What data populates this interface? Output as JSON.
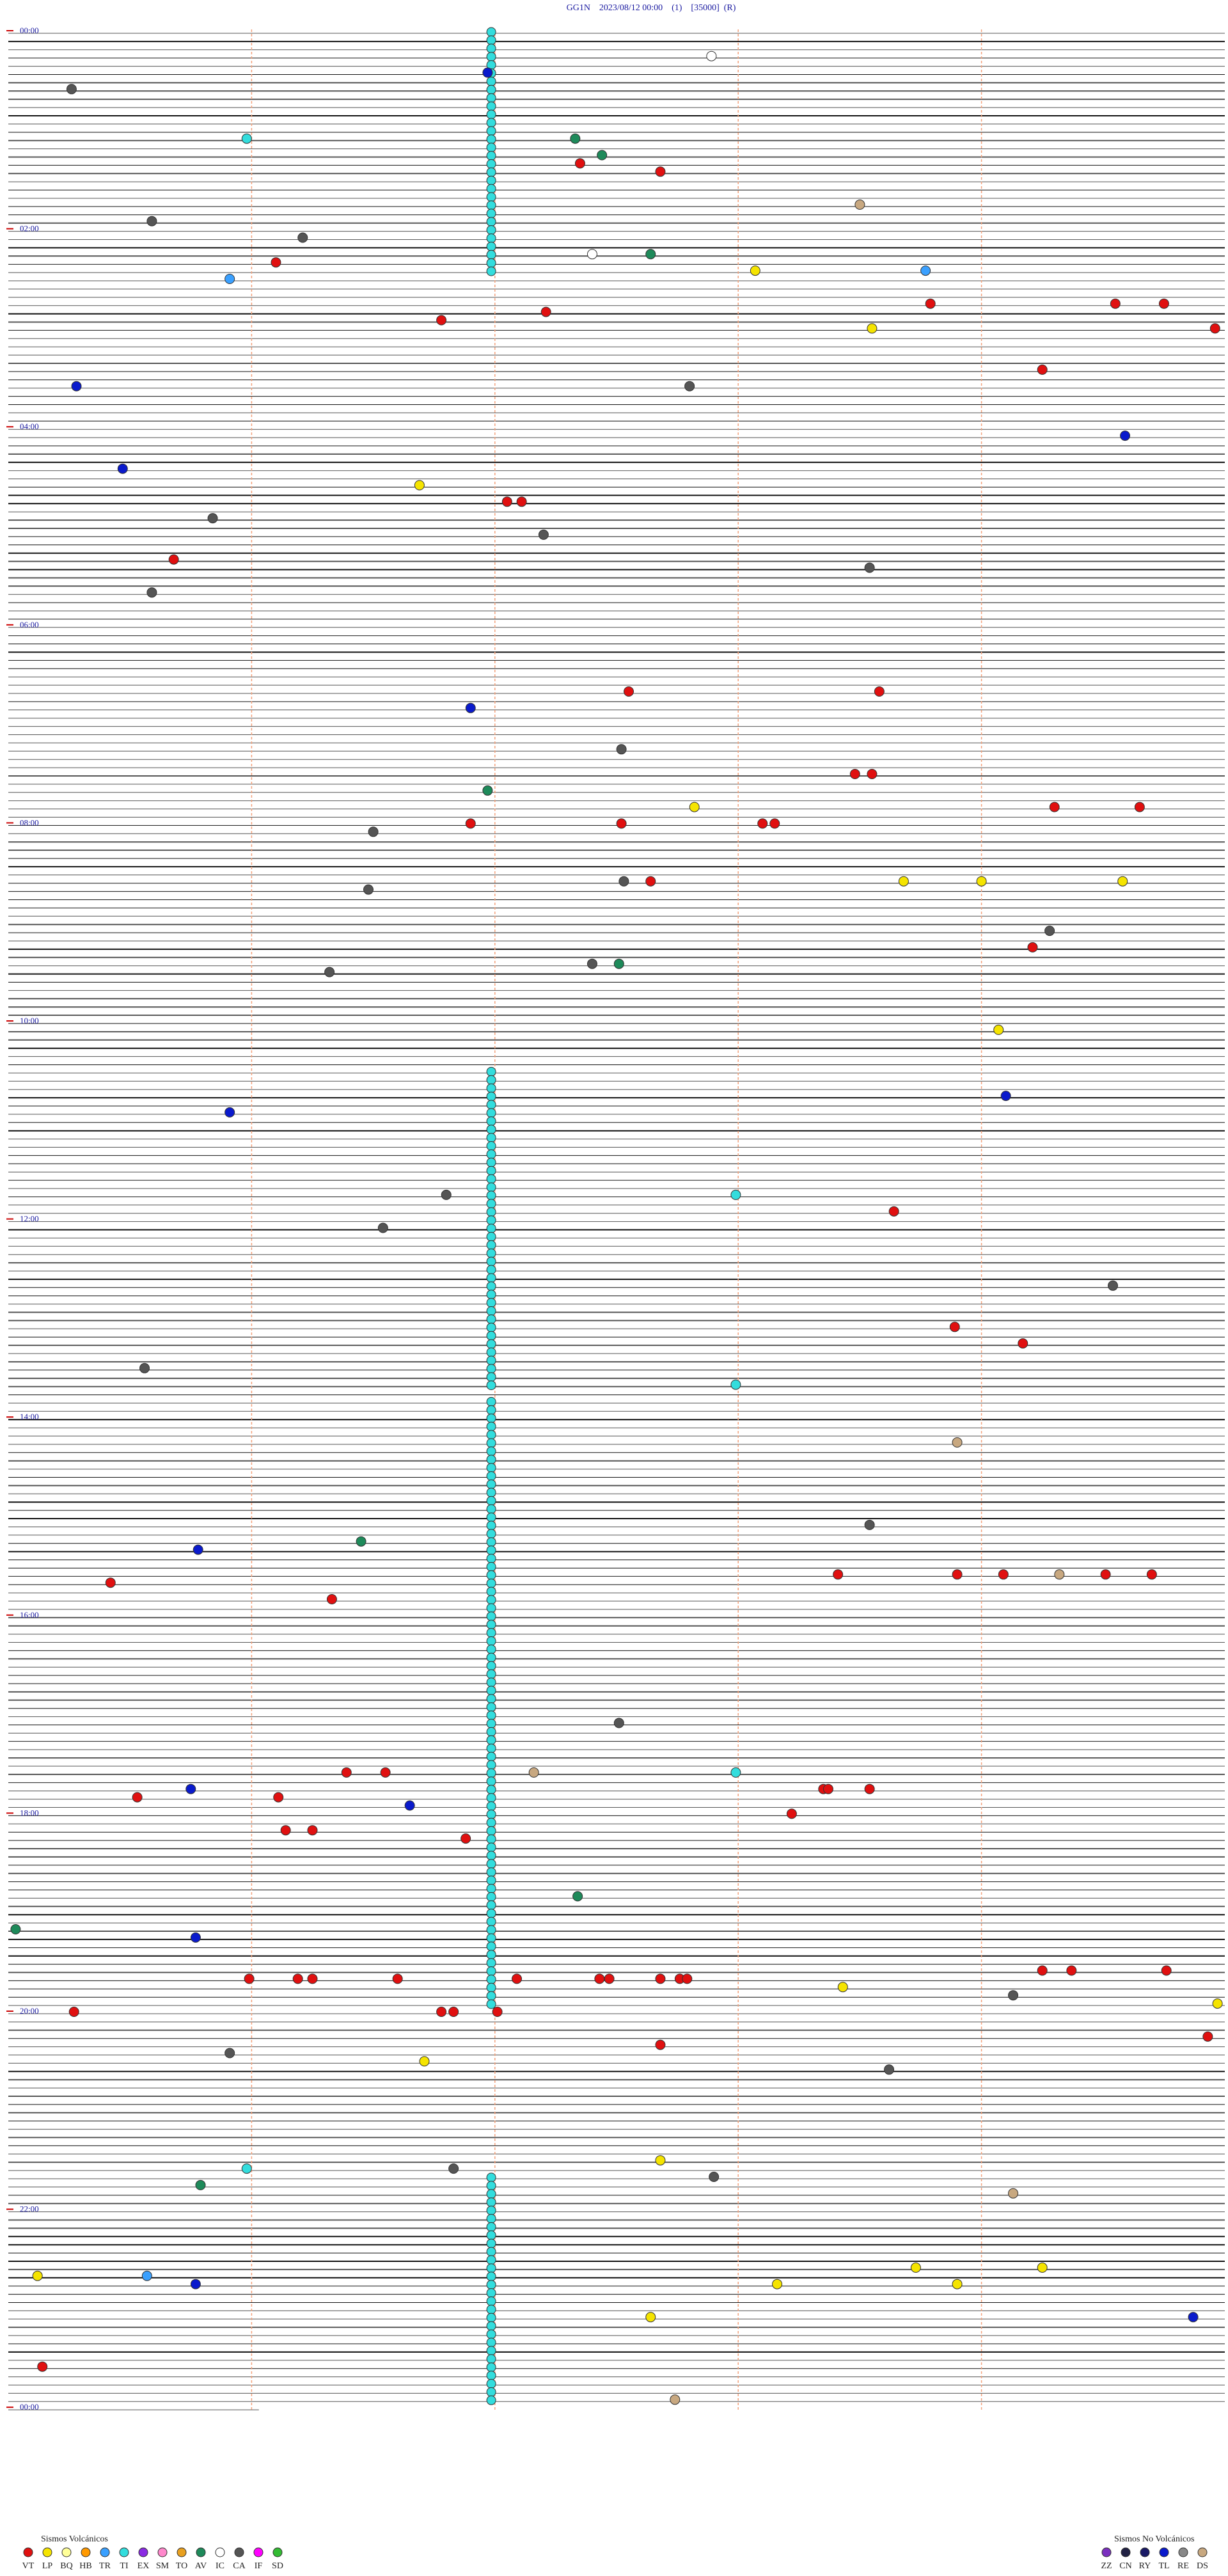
{
  "header": {
    "title": "GG1N    2023/08/12 00:00    (1)    [35000]  (R)"
  },
  "time_labels": [
    "00:00",
    "02:00",
    "04:00",
    "06:00",
    "08:00",
    "10:00",
    "12:00",
    "14:00",
    "16:00",
    "18:00",
    "20:00",
    "22:00",
    "00:00"
  ],
  "legend": {
    "volcanic": {
      "title": "Sismos Volcánicos",
      "items": [
        {
          "code": "VT",
          "color": "#e01010"
        },
        {
          "code": "LP",
          "color": "#f5e400"
        },
        {
          "code": "BQ",
          "color": "#ffff99"
        },
        {
          "code": "HB",
          "color": "#ff9900"
        },
        {
          "code": "TR",
          "color": "#3aa0ff"
        },
        {
          "code": "TI",
          "color": "#33dddd"
        },
        {
          "code": "EX",
          "color": "#8a2be2"
        },
        {
          "code": "SM",
          "color": "#ff88cc"
        },
        {
          "code": "TO",
          "color": "#e8a020"
        },
        {
          "code": "AV",
          "color": "#1e8a5a"
        },
        {
          "code": "IC",
          "color": "#ffffff"
        },
        {
          "code": "CA",
          "color": "#555555"
        },
        {
          "code": "IF",
          "color": "#ff00ff"
        },
        {
          "code": "SD",
          "color": "#33bb33"
        }
      ]
    },
    "non_volcanic": {
      "title": "Sismos No Volcánicos",
      "items": [
        {
          "code": "ZZ",
          "color": "#7b2fbf"
        },
        {
          "code": "CN",
          "color": "#222244"
        },
        {
          "code": "RY",
          "color": "#1a1a66"
        },
        {
          "code": "TL",
          "color": "#0a1acc"
        },
        {
          "code": "RE",
          "color": "#888888"
        },
        {
          "code": "DS",
          "color": "#c8a880"
        }
      ]
    }
  },
  "ti_runs": [
    {
      "from": 0,
      "to": 29,
      "minute": 1.985
    },
    {
      "from": 126,
      "to": 164,
      "minute": 1.985
    },
    {
      "from": 166,
      "to": 211,
      "minute": 1.985
    },
    {
      "from": 212,
      "to": 239,
      "minute": 1.985
    },
    {
      "from": 260,
      "to": 287,
      "minute": 1.985
    }
  ],
  "events": [
    {
      "row": 3,
      "minute": 2.89,
      "type": "IC"
    },
    {
      "row": 5,
      "minute": 1.97,
      "type": "TL"
    },
    {
      "row": 7,
      "minute": 0.26,
      "type": "CA"
    },
    {
      "row": 13,
      "minute": 0.98,
      "type": "TI"
    },
    {
      "row": 13,
      "minute": 2.33,
      "type": "AV"
    },
    {
      "row": 15,
      "minute": 2.44,
      "type": "AV"
    },
    {
      "row": 16,
      "minute": 2.35,
      "type": "VT"
    },
    {
      "row": 17,
      "minute": 2.68,
      "type": "VT"
    },
    {
      "row": 21,
      "minute": 3.5,
      "type": "DS"
    },
    {
      "row": 23,
      "minute": 0.59,
      "type": "CA"
    },
    {
      "row": 25,
      "minute": 1.21,
      "type": "CA"
    },
    {
      "row": 27,
      "minute": 2.4,
      "type": "IC"
    },
    {
      "row": 27,
      "minute": 2.64,
      "type": "AV"
    },
    {
      "row": 28,
      "minute": 1.1,
      "type": "VT"
    },
    {
      "row": 29,
      "minute": 3.07,
      "type": "LP"
    },
    {
      "row": 29,
      "minute": 3.77,
      "type": "TR"
    },
    {
      "row": 30,
      "minute": 0.91,
      "type": "TR"
    },
    {
      "row": 33,
      "minute": 3.79,
      "type": "VT"
    },
    {
      "row": 33,
      "minute": 4.55,
      "type": "VT"
    },
    {
      "row": 33,
      "minute": 4.75,
      "type": "VT"
    },
    {
      "row": 34,
      "minute": 2.21,
      "type": "VT"
    },
    {
      "row": 35,
      "minute": 1.78,
      "type": "VT"
    },
    {
      "row": 36,
      "minute": 3.55,
      "type": "LP"
    },
    {
      "row": 36,
      "minute": 4.96,
      "type": "VT"
    },
    {
      "row": 41,
      "minute": 4.25,
      "type": "VT"
    },
    {
      "row": 43,
      "minute": 0.28,
      "type": "TL"
    },
    {
      "row": 43,
      "minute": 2.8,
      "type": "CA"
    },
    {
      "row": 49,
      "minute": 4.59,
      "type": "TL"
    },
    {
      "row": 53,
      "minute": 0.47,
      "type": "TL"
    },
    {
      "row": 55,
      "minute": 1.69,
      "type": "LP"
    },
    {
      "row": 57,
      "minute": 2.05,
      "type": "VT"
    },
    {
      "row": 57,
      "minute": 2.11,
      "type": "VT"
    },
    {
      "row": 59,
      "minute": 0.84,
      "type": "CA"
    },
    {
      "row": 61,
      "minute": 2.2,
      "type": "CA"
    },
    {
      "row": 64,
      "minute": 0.68,
      "type": "VT"
    },
    {
      "row": 65,
      "minute": 3.54,
      "type": "CA"
    },
    {
      "row": 68,
      "minute": 0.59,
      "type": "CA"
    },
    {
      "row": 80,
      "minute": 2.55,
      "type": "VT"
    },
    {
      "row": 80,
      "minute": 3.58,
      "type": "VT"
    },
    {
      "row": 82,
      "minute": 1.9,
      "type": "TL"
    },
    {
      "row": 87,
      "minute": 2.52,
      "type": "CA"
    },
    {
      "row": 90,
      "minute": 3.48,
      "type": "VT"
    },
    {
      "row": 90,
      "minute": 3.55,
      "type": "VT"
    },
    {
      "row": 92,
      "minute": 1.97,
      "type": "AV"
    },
    {
      "row": 94,
      "minute": 2.82,
      "type": "LP"
    },
    {
      "row": 94,
      "minute": 4.3,
      "type": "VT"
    },
    {
      "row": 94,
      "minute": 4.65,
      "type": "VT"
    },
    {
      "row": 96,
      "minute": 1.9,
      "type": "VT"
    },
    {
      "row": 96,
      "minute": 2.52,
      "type": "VT"
    },
    {
      "row": 96,
      "minute": 3.1,
      "type": "VT"
    },
    {
      "row": 96,
      "minute": 3.15,
      "type": "VT"
    },
    {
      "row": 97,
      "minute": 1.5,
      "type": "CA"
    },
    {
      "row": 103,
      "minute": 2.64,
      "type": "VT"
    },
    {
      "row": 103,
      "minute": 2.53,
      "type": "CA"
    },
    {
      "row": 103,
      "minute": 3.68,
      "type": "LP"
    },
    {
      "row": 103,
      "minute": 4.0,
      "type": "LP"
    },
    {
      "row": 103,
      "minute": 4.58,
      "type": "LP"
    },
    {
      "row": 104,
      "minute": 1.48,
      "type": "CA"
    },
    {
      "row": 109,
      "minute": 4.28,
      "type": "CA"
    },
    {
      "row": 111,
      "minute": 4.21,
      "type": "VT"
    },
    {
      "row": 113,
      "minute": 2.4,
      "type": "CA"
    },
    {
      "row": 113,
      "minute": 2.51,
      "type": "AV"
    },
    {
      "row": 114,
      "minute": 1.32,
      "type": "CA"
    },
    {
      "row": 121,
      "minute": 4.07,
      "type": "LP"
    },
    {
      "row": 129,
      "minute": 4.1,
      "type": "TL"
    },
    {
      "row": 131,
      "minute": 0.91,
      "type": "TL"
    },
    {
      "row": 141,
      "minute": 1.8,
      "type": "CA"
    },
    {
      "row": 141,
      "minute": 2.99,
      "type": "TI"
    },
    {
      "row": 143,
      "minute": 3.64,
      "type": "VT"
    },
    {
      "row": 145,
      "minute": 1.54,
      "type": "CA"
    },
    {
      "row": 152,
      "minute": 4.54,
      "type": "CA"
    },
    {
      "row": 157,
      "minute": 3.89,
      "type": "VT"
    },
    {
      "row": 159,
      "minute": 4.17,
      "type": "VT"
    },
    {
      "row": 162,
      "minute": 0.56,
      "type": "CA"
    },
    {
      "row": 164,
      "minute": 2.99,
      "type": "TI"
    },
    {
      "row": 171,
      "minute": 3.9,
      "type": "DS"
    },
    {
      "row": 181,
      "minute": 3.54,
      "type": "CA"
    },
    {
      "row": 183,
      "minute": 1.45,
      "type": "AV"
    },
    {
      "row": 184,
      "minute": 0.78,
      "type": "TL"
    },
    {
      "row": 187,
      "minute": 3.41,
      "type": "VT"
    },
    {
      "row": 187,
      "minute": 3.9,
      "type": "VT"
    },
    {
      "row": 187,
      "minute": 4.09,
      "type": "VT"
    },
    {
      "row": 187,
      "minute": 4.51,
      "type": "VT"
    },
    {
      "row": 187,
      "minute": 4.7,
      "type": "VT"
    },
    {
      "row": 187,
      "minute": 4.32,
      "type": "DS"
    },
    {
      "row": 188,
      "minute": 0.42,
      "type": "VT"
    },
    {
      "row": 190,
      "minute": 1.33,
      "type": "VT"
    },
    {
      "row": 205,
      "minute": 2.51,
      "type": "CA"
    },
    {
      "row": 211,
      "minute": 1.39,
      "type": "VT"
    },
    {
      "row": 211,
      "minute": 1.55,
      "type": "VT"
    },
    {
      "row": 211,
      "minute": 2.99,
      "type": "TI"
    },
    {
      "row": 211,
      "minute": 2.16,
      "type": "DS"
    },
    {
      "row": 213,
      "minute": 0.75,
      "type": "TL"
    },
    {
      "row": 214,
      "minute": 1.11,
      "type": "VT"
    },
    {
      "row": 214,
      "minute": 0.53,
      "type": "VT"
    },
    {
      "row": 213,
      "minute": 3.35,
      "type": "VT"
    },
    {
      "row": 213,
      "minute": 3.37,
      "type": "VT"
    },
    {
      "row": 213,
      "minute": 3.54,
      "type": "VT"
    },
    {
      "row": 215,
      "minute": 1.65,
      "type": "TL"
    },
    {
      "row": 216,
      "minute": 3.22,
      "type": "VT"
    },
    {
      "row": 218,
      "minute": 1.14,
      "type": "VT"
    },
    {
      "row": 218,
      "minute": 1.25,
      "type": "VT"
    },
    {
      "row": 219,
      "minute": 1.88,
      "type": "VT"
    },
    {
      "row": 226,
      "minute": 2.34,
      "type": "AV"
    },
    {
      "row": 230,
      "minute": 0.03,
      "type": "AV"
    },
    {
      "row": 231,
      "minute": 0.77,
      "type": "TL"
    },
    {
      "row": 236,
      "minute": 0.99,
      "type": "VT"
    },
    {
      "row": 236,
      "minute": 1.19,
      "type": "VT"
    },
    {
      "row": 236,
      "minute": 1.25,
      "type": "VT"
    },
    {
      "row": 236,
      "minute": 1.6,
      "type": "VT"
    },
    {
      "row": 236,
      "minute": 2.09,
      "type": "VT"
    },
    {
      "row": 236,
      "minute": 2.43,
      "type": "VT"
    },
    {
      "row": 236,
      "minute": 2.47,
      "type": "VT"
    },
    {
      "row": 236,
      "minute": 2.68,
      "type": "VT"
    },
    {
      "row": 236,
      "minute": 2.76,
      "type": "VT"
    },
    {
      "row": 236,
      "minute": 2.79,
      "type": "VT"
    },
    {
      "row": 235,
      "minute": 4.25,
      "type": "VT"
    },
    {
      "row": 235,
      "minute": 4.37,
      "type": "VT"
    },
    {
      "row": 235,
      "minute": 4.76,
      "type": "VT"
    },
    {
      "row": 237,
      "minute": 3.43,
      "type": "LP"
    },
    {
      "row": 238,
      "minute": 4.13,
      "type": "CA"
    },
    {
      "row": 239,
      "minute": 4.97,
      "type": "LP"
    },
    {
      "row": 240,
      "minute": 0.27,
      "type": "VT"
    },
    {
      "row": 240,
      "minute": 1.78,
      "type": "VT"
    },
    {
      "row": 240,
      "minute": 1.83,
      "type": "VT"
    },
    {
      "row": 240,
      "minute": 2.01,
      "type": "VT"
    },
    {
      "row": 243,
      "minute": 4.93,
      "type": "VT"
    },
    {
      "row": 244,
      "minute": 2.68,
      "type": "VT"
    },
    {
      "row": 245,
      "minute": 0.91,
      "type": "CA"
    },
    {
      "row": 246,
      "minute": 1.71,
      "type": "LP"
    },
    {
      "row": 247,
      "minute": 3.62,
      "type": "CA"
    },
    {
      "row": 258,
      "minute": 2.68,
      "type": "LP"
    },
    {
      "row": 259,
      "minute": 1.83,
      "type": "CA"
    },
    {
      "row": 259,
      "minute": 0.98,
      "type": "TI"
    },
    {
      "row": 260,
      "minute": 2.9,
      "type": "CA"
    },
    {
      "row": 261,
      "minute": 0.79,
      "type": "AV"
    },
    {
      "row": 262,
      "minute": 4.13,
      "type": "DS"
    },
    {
      "row": 271,
      "minute": 3.73,
      "type": "LP"
    },
    {
      "row": 271,
      "minute": 4.25,
      "type": "LP"
    },
    {
      "row": 272,
      "minute": 0.12,
      "type": "LP"
    },
    {
      "row": 272,
      "minute": 0.57,
      "type": "TR"
    },
    {
      "row": 273,
      "minute": 0.77,
      "type": "TL"
    },
    {
      "row": 273,
      "minute": 3.16,
      "type": "LP"
    },
    {
      "row": 273,
      "minute": 3.9,
      "type": "LP"
    },
    {
      "row": 277,
      "minute": 2.64,
      "type": "LP"
    },
    {
      "row": 277,
      "minute": 4.87,
      "type": "TL"
    },
    {
      "row": 283,
      "minute": 0.14,
      "type": "VT"
    },
    {
      "row": 287,
      "minute": 2.74,
      "type": "DS"
    }
  ]
}
